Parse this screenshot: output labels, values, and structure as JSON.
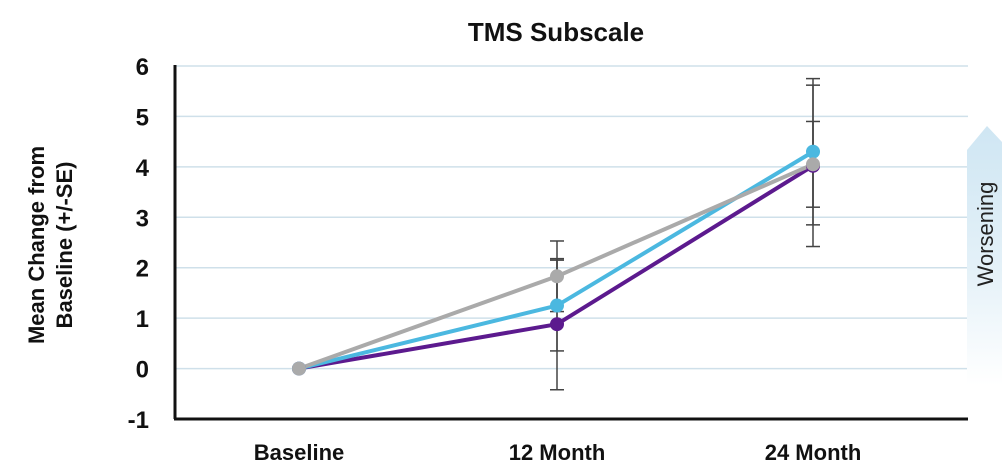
{
  "chart_data": {
    "type": "line",
    "title": "TMS Subscale",
    "xlabel": "",
    "ylabel": [
      "Mean Change from",
      "Baseline (+/-SE)"
    ],
    "categories": [
      "Baseline",
      "12 Month",
      "24 Month"
    ],
    "ylim": [
      -1,
      6
    ],
    "yticks": [
      -1,
      0,
      1,
      2,
      3,
      4,
      5,
      6
    ],
    "grid": true,
    "series": [
      {
        "color": "#5c1a8e",
        "values": [
          0,
          0.88,
          4.02
        ],
        "err": [
          0,
          1.3,
          1.6
        ]
      },
      {
        "color": "#4bb8e0",
        "values": [
          0,
          1.25,
          4.3
        ],
        "err": [
          0,
          0.9,
          1.45
        ]
      },
      {
        "color": "#aaaaaa",
        "values": [
          0,
          1.83,
          4.05
        ],
        "err": [
          0,
          0.7,
          0.85
        ]
      }
    ],
    "annotation": {
      "text": "Worsening",
      "arrow_direction": "up",
      "arrow_color": "#d7eaf5"
    }
  }
}
